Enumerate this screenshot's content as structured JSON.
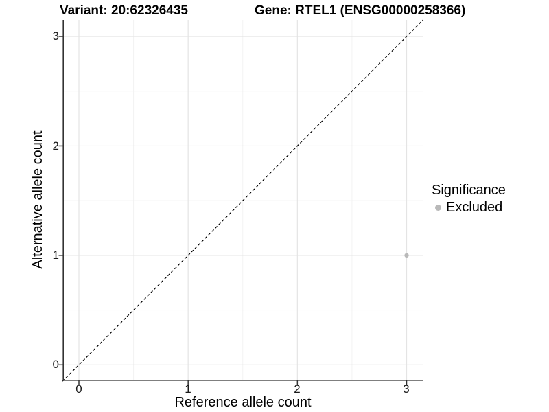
{
  "header": {
    "variant_title": "Variant: 20:62326435",
    "gene_title": "Gene: RTEL1 (ENSG00000258366)"
  },
  "axes": {
    "x": {
      "label": "Reference allele count"
    },
    "y": {
      "label": "Alternative allele count"
    }
  },
  "legend": {
    "title": "Significance",
    "entries": [
      {
        "label": "Excluded",
        "color": "#b9b9b9"
      }
    ]
  },
  "chart_data": {
    "type": "scatter",
    "title": "Variant: 20:62326435 — Gene: RTEL1 (ENSG00000258366)",
    "xlabel": "Reference allele count",
    "ylabel": "Alternative allele count",
    "xlim": [
      -0.15,
      3.152
    ],
    "ylim": [
      -0.15,
      3.152
    ],
    "x_ticks": [
      0,
      1,
      2,
      3
    ],
    "y_ticks": [
      0,
      1,
      2,
      3
    ],
    "grid": "major and minor gridlines on, light gray on white panel",
    "legend": {
      "title": "Significance",
      "position": "right",
      "entries": [
        {
          "label": "Excluded",
          "color": "#b9b9b9"
        }
      ]
    },
    "series": [
      {
        "name": "Excluded",
        "color": "#b9b9b9",
        "points": [
          {
            "x": 3,
            "y": 1
          }
        ]
      }
    ],
    "reference_line": {
      "type": "identity y=x",
      "style": "dashed",
      "color": "#000000"
    },
    "colors": {
      "axis_line": "#333333",
      "grid_major": "#e4e4e4",
      "grid_minor": "#f2f2f2",
      "point": "#b9b9b9"
    }
  }
}
